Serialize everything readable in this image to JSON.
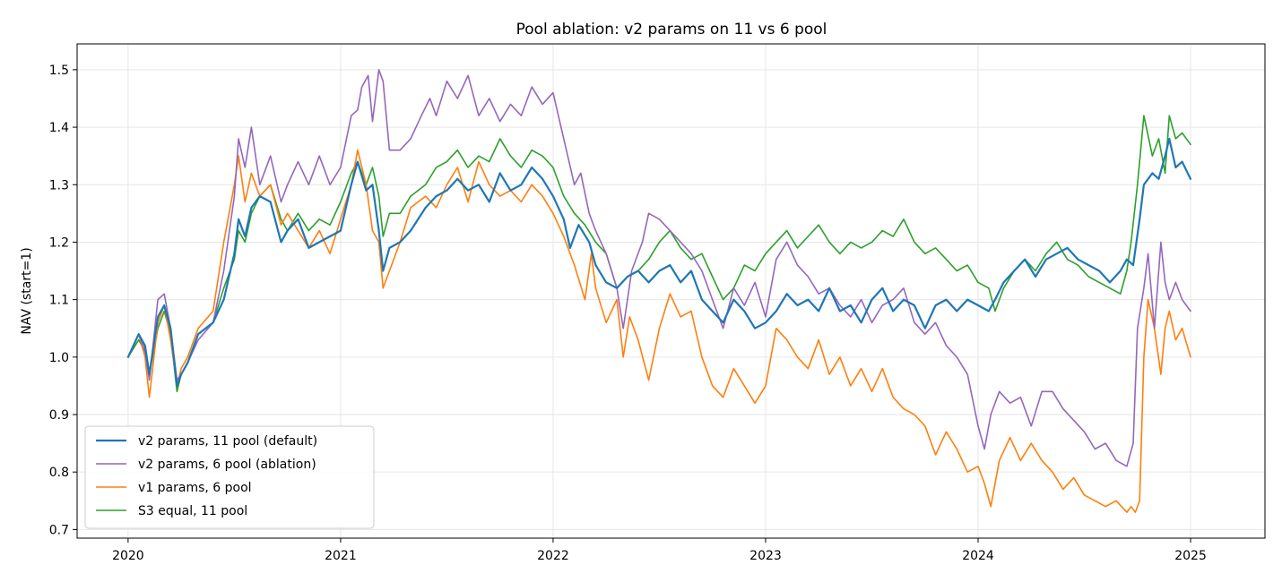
{
  "chart_data": {
    "type": "line",
    "title": "Pool ablation: v2 params on 11 vs 6 pool",
    "xlabel": "",
    "ylabel": "NAV (start=1)",
    "xlim": [
      2019.76,
      2025.35
    ],
    "ylim": [
      0.685,
      1.545
    ],
    "xticks": [
      2020,
      2021,
      2022,
      2023,
      2024,
      2025
    ],
    "xtick_labels": [
      "2020",
      "2021",
      "2022",
      "2023",
      "2024",
      "2025"
    ],
    "yticks": [
      0.7,
      0.8,
      0.9,
      1.0,
      1.1,
      1.2,
      1.3,
      1.4,
      1.5
    ],
    "ytick_labels": [
      "0.7",
      "0.8",
      "0.9",
      "1.0",
      "1.1",
      "1.2",
      "1.3",
      "1.4",
      "1.5"
    ],
    "grid": true,
    "legend_position": "lower-left",
    "series": [
      {
        "name": "v2 params, 11 pool (default)",
        "color": "#1f77b4",
        "line_width": 2.2,
        "x": [
          2020.0,
          2020.05,
          2020.08,
          2020.1,
          2020.14,
          2020.17,
          2020.2,
          2020.23,
          2020.25,
          2020.28,
          2020.33,
          2020.4,
          2020.45,
          2020.5,
          2020.52,
          2020.55,
          2020.58,
          2020.62,
          2020.67,
          2020.72,
          2020.75,
          2020.8,
          2020.85,
          2020.9,
          2020.95,
          2021.0,
          2021.05,
          2021.08,
          2021.12,
          2021.15,
          2021.18,
          2021.2,
          2021.23,
          2021.28,
          2021.33,
          2021.4,
          2021.45,
          2021.5,
          2021.55,
          2021.6,
          2021.65,
          2021.7,
          2021.75,
          2021.8,
          2021.85,
          2021.9,
          2021.95,
          2022.0,
          2022.05,
          2022.08,
          2022.12,
          2022.17,
          2022.2,
          2022.25,
          2022.3,
          2022.35,
          2022.4,
          2022.45,
          2022.5,
          2022.55,
          2022.6,
          2022.65,
          2022.7,
          2022.75,
          2022.8,
          2022.85,
          2022.9,
          2022.95,
          2023.0,
          2023.05,
          2023.1,
          2023.15,
          2023.2,
          2023.25,
          2023.3,
          2023.35,
          2023.4,
          2023.45,
          2023.5,
          2023.55,
          2023.6,
          2023.65,
          2023.7,
          2023.75,
          2023.8,
          2023.85,
          2023.9,
          2023.95,
          2024.0,
          2024.05,
          2024.08,
          2024.12,
          2024.17,
          2024.22,
          2024.27,
          2024.32,
          2024.37,
          2024.42,
          2024.47,
          2024.52,
          2024.57,
          2024.62,
          2024.67,
          2024.7,
          2024.73,
          2024.76,
          2024.78,
          2024.82,
          2024.85,
          2024.88,
          2024.9,
          2024.93,
          2024.96,
          2025.0
        ],
        "y": [
          1.0,
          1.04,
          1.02,
          0.97,
          1.07,
          1.09,
          1.05,
          0.95,
          0.97,
          0.99,
          1.04,
          1.06,
          1.1,
          1.18,
          1.24,
          1.21,
          1.26,
          1.28,
          1.27,
          1.2,
          1.22,
          1.24,
          1.19,
          1.2,
          1.21,
          1.22,
          1.3,
          1.34,
          1.29,
          1.3,
          1.22,
          1.15,
          1.19,
          1.2,
          1.22,
          1.26,
          1.28,
          1.29,
          1.31,
          1.29,
          1.3,
          1.27,
          1.32,
          1.29,
          1.3,
          1.33,
          1.31,
          1.28,
          1.24,
          1.19,
          1.23,
          1.2,
          1.16,
          1.13,
          1.12,
          1.14,
          1.15,
          1.13,
          1.15,
          1.16,
          1.13,
          1.15,
          1.1,
          1.08,
          1.06,
          1.1,
          1.08,
          1.05,
          1.06,
          1.08,
          1.11,
          1.09,
          1.1,
          1.08,
          1.12,
          1.08,
          1.09,
          1.06,
          1.1,
          1.12,
          1.08,
          1.1,
          1.09,
          1.05,
          1.09,
          1.1,
          1.08,
          1.1,
          1.09,
          1.08,
          1.1,
          1.13,
          1.15,
          1.17,
          1.14,
          1.17,
          1.18,
          1.19,
          1.17,
          1.16,
          1.15,
          1.13,
          1.15,
          1.17,
          1.16,
          1.24,
          1.3,
          1.32,
          1.31,
          1.35,
          1.38,
          1.33,
          1.34,
          1.31
        ]
      },
      {
        "name": "v2 params, 6 pool (ablation)",
        "color": "#9467bd",
        "line_width": 1.6,
        "x": [
          2020.0,
          2020.05,
          2020.08,
          2020.1,
          2020.14,
          2020.17,
          2020.2,
          2020.23,
          2020.25,
          2020.28,
          2020.33,
          2020.4,
          2020.45,
          2020.5,
          2020.52,
          2020.55,
          2020.58,
          2020.62,
          2020.67,
          2020.72,
          2020.75,
          2020.8,
          2020.85,
          2020.9,
          2020.95,
          2021.0,
          2021.05,
          2021.08,
          2021.1,
          2021.13,
          2021.15,
          2021.18,
          2021.2,
          2021.23,
          2021.28,
          2021.33,
          2021.38,
          2021.42,
          2021.45,
          2021.5,
          2021.55,
          2021.6,
          2021.65,
          2021.7,
          2021.75,
          2021.8,
          2021.85,
          2021.9,
          2021.95,
          2022.0,
          2022.05,
          2022.1,
          2022.13,
          2022.17,
          2022.2,
          2022.25,
          2022.3,
          2022.33,
          2022.37,
          2022.42,
          2022.45,
          2022.5,
          2022.55,
          2022.6,
          2022.65,
          2022.7,
          2022.75,
          2022.8,
          2022.85,
          2022.9,
          2022.95,
          2023.0,
          2023.05,
          2023.1,
          2023.15,
          2023.2,
          2023.25,
          2023.3,
          2023.35,
          2023.4,
          2023.45,
          2023.5,
          2023.55,
          2023.6,
          2023.65,
          2023.7,
          2023.75,
          2023.8,
          2023.85,
          2023.9,
          2023.95,
          2024.0,
          2024.03,
          2024.06,
          2024.1,
          2024.15,
          2024.2,
          2024.25,
          2024.3,
          2024.35,
          2024.4,
          2024.45,
          2024.5,
          2024.55,
          2024.6,
          2024.65,
          2024.7,
          2024.73,
          2024.75,
          2024.78,
          2024.8,
          2024.83,
          2024.86,
          2024.88,
          2024.9,
          2024.93,
          2024.96,
          2025.0
        ],
        "y": [
          1.0,
          1.04,
          1.01,
          0.96,
          1.1,
          1.11,
          1.05,
          0.96,
          0.97,
          0.99,
          1.03,
          1.06,
          1.15,
          1.28,
          1.38,
          1.33,
          1.4,
          1.3,
          1.35,
          1.27,
          1.3,
          1.34,
          1.3,
          1.35,
          1.3,
          1.33,
          1.42,
          1.43,
          1.47,
          1.49,
          1.41,
          1.5,
          1.48,
          1.36,
          1.36,
          1.38,
          1.42,
          1.45,
          1.42,
          1.48,
          1.45,
          1.49,
          1.42,
          1.45,
          1.41,
          1.44,
          1.42,
          1.47,
          1.44,
          1.46,
          1.38,
          1.3,
          1.32,
          1.25,
          1.22,
          1.18,
          1.12,
          1.05,
          1.15,
          1.2,
          1.25,
          1.24,
          1.22,
          1.2,
          1.18,
          1.15,
          1.1,
          1.05,
          1.12,
          1.09,
          1.13,
          1.07,
          1.17,
          1.2,
          1.16,
          1.14,
          1.11,
          1.12,
          1.09,
          1.07,
          1.1,
          1.06,
          1.09,
          1.1,
          1.12,
          1.06,
          1.04,
          1.06,
          1.02,
          1.0,
          0.97,
          0.88,
          0.84,
          0.9,
          0.94,
          0.92,
          0.93,
          0.88,
          0.94,
          0.94,
          0.91,
          0.89,
          0.87,
          0.84,
          0.85,
          0.82,
          0.81,
          0.85,
          1.05,
          1.12,
          1.18,
          1.05,
          1.2,
          1.13,
          1.1,
          1.13,
          1.1,
          1.08
        ]
      },
      {
        "name": "v1 params, 6 pool",
        "color": "#ff7f0e",
        "line_width": 1.6,
        "x": [
          2020.0,
          2020.05,
          2020.08,
          2020.1,
          2020.14,
          2020.17,
          2020.2,
          2020.23,
          2020.25,
          2020.28,
          2020.33,
          2020.4,
          2020.45,
          2020.5,
          2020.52,
          2020.55,
          2020.58,
          2020.62,
          2020.67,
          2020.72,
          2020.75,
          2020.8,
          2020.85,
          2020.9,
          2020.95,
          2021.0,
          2021.05,
          2021.08,
          2021.12,
          2021.15,
          2021.18,
          2021.2,
          2021.23,
          2021.28,
          2021.33,
          2021.4,
          2021.45,
          2021.5,
          2021.55,
          2021.6,
          2021.65,
          2021.7,
          2021.75,
          2021.8,
          2021.85,
          2021.9,
          2021.95,
          2022.0,
          2022.05,
          2022.1,
          2022.15,
          2022.18,
          2022.2,
          2022.25,
          2022.3,
          2022.33,
          2022.36,
          2022.4,
          2022.45,
          2022.5,
          2022.55,
          2022.6,
          2022.65,
          2022.7,
          2022.75,
          2022.8,
          2022.85,
          2022.9,
          2022.95,
          2023.0,
          2023.05,
          2023.1,
          2023.15,
          2023.2,
          2023.25,
          2023.3,
          2023.35,
          2023.4,
          2023.45,
          2023.5,
          2023.55,
          2023.6,
          2023.65,
          2023.7,
          2023.75,
          2023.8,
          2023.85,
          2023.9,
          2023.95,
          2024.0,
          2024.03,
          2024.06,
          2024.1,
          2024.15,
          2024.2,
          2024.25,
          2024.3,
          2024.35,
          2024.4,
          2024.45,
          2024.5,
          2024.55,
          2024.6,
          2024.65,
          2024.7,
          2024.72,
          2024.74,
          2024.76,
          2024.78,
          2024.8,
          2024.83,
          2024.86,
          2024.88,
          2024.9,
          2024.93,
          2024.96,
          2025.0
        ],
        "y": [
          1.0,
          1.04,
          1.0,
          0.93,
          1.06,
          1.09,
          1.03,
          0.95,
          0.98,
          1.0,
          1.05,
          1.08,
          1.2,
          1.3,
          1.35,
          1.27,
          1.32,
          1.28,
          1.3,
          1.23,
          1.25,
          1.22,
          1.19,
          1.22,
          1.18,
          1.24,
          1.3,
          1.36,
          1.3,
          1.22,
          1.2,
          1.12,
          1.15,
          1.2,
          1.26,
          1.28,
          1.26,
          1.3,
          1.33,
          1.27,
          1.34,
          1.3,
          1.28,
          1.29,
          1.27,
          1.3,
          1.28,
          1.25,
          1.21,
          1.16,
          1.1,
          1.18,
          1.12,
          1.06,
          1.1,
          1.0,
          1.07,
          1.03,
          0.96,
          1.05,
          1.11,
          1.07,
          1.08,
          1.0,
          0.95,
          0.93,
          0.98,
          0.95,
          0.92,
          0.95,
          1.05,
          1.03,
          1.0,
          0.98,
          1.03,
          0.97,
          1.0,
          0.95,
          0.98,
          0.94,
          0.98,
          0.93,
          0.91,
          0.9,
          0.88,
          0.83,
          0.87,
          0.84,
          0.8,
          0.81,
          0.78,
          0.74,
          0.82,
          0.86,
          0.82,
          0.85,
          0.82,
          0.8,
          0.77,
          0.79,
          0.76,
          0.75,
          0.74,
          0.75,
          0.73,
          0.74,
          0.73,
          0.75,
          1.0,
          1.1,
          1.05,
          0.97,
          1.05,
          1.08,
          1.03,
          1.05,
          1.0
        ]
      },
      {
        "name": "S3 equal, 11 pool",
        "color": "#2ca02c",
        "line_width": 1.6,
        "x": [
          2020.0,
          2020.05,
          2020.08,
          2020.1,
          2020.14,
          2020.17,
          2020.2,
          2020.23,
          2020.25,
          2020.28,
          2020.33,
          2020.4,
          2020.45,
          2020.5,
          2020.52,
          2020.55,
          2020.58,
          2020.62,
          2020.67,
          2020.72,
          2020.75,
          2020.8,
          2020.85,
          2020.9,
          2020.95,
          2021.0,
          2021.05,
          2021.08,
          2021.12,
          2021.15,
          2021.18,
          2021.2,
          2021.23,
          2021.28,
          2021.33,
          2021.4,
          2021.45,
          2021.5,
          2021.55,
          2021.6,
          2021.65,
          2021.7,
          2021.75,
          2021.8,
          2021.85,
          2021.9,
          2021.95,
          2022.0,
          2022.05,
          2022.1,
          2022.15,
          2022.2,
          2022.25,
          2022.3,
          2022.35,
          2022.4,
          2022.45,
          2022.5,
          2022.55,
          2022.6,
          2022.65,
          2022.7,
          2022.75,
          2022.8,
          2022.85,
          2022.9,
          2022.95,
          2023.0,
          2023.05,
          2023.1,
          2023.15,
          2023.2,
          2023.25,
          2023.3,
          2023.35,
          2023.4,
          2023.45,
          2023.5,
          2023.55,
          2023.6,
          2023.65,
          2023.7,
          2023.75,
          2023.8,
          2023.85,
          2023.9,
          2023.95,
          2024.0,
          2024.05,
          2024.08,
          2024.12,
          2024.17,
          2024.22,
          2024.27,
          2024.32,
          2024.37,
          2024.42,
          2024.47,
          2024.52,
          2024.57,
          2024.62,
          2024.67,
          2024.7,
          2024.72,
          2024.75,
          2024.78,
          2024.82,
          2024.85,
          2024.88,
          2024.9,
          2024.93,
          2024.96,
          2025.0
        ],
        "y": [
          1.0,
          1.03,
          1.01,
          0.97,
          1.05,
          1.08,
          1.04,
          0.94,
          0.97,
          0.99,
          1.04,
          1.06,
          1.12,
          1.17,
          1.22,
          1.2,
          1.25,
          1.28,
          1.3,
          1.24,
          1.22,
          1.25,
          1.22,
          1.24,
          1.23,
          1.27,
          1.32,
          1.34,
          1.3,
          1.33,
          1.28,
          1.21,
          1.25,
          1.25,
          1.28,
          1.3,
          1.33,
          1.34,
          1.36,
          1.33,
          1.35,
          1.34,
          1.38,
          1.35,
          1.33,
          1.36,
          1.35,
          1.33,
          1.28,
          1.25,
          1.23,
          1.2,
          1.18,
          1.12,
          1.14,
          1.15,
          1.17,
          1.2,
          1.22,
          1.19,
          1.17,
          1.18,
          1.14,
          1.1,
          1.12,
          1.16,
          1.15,
          1.18,
          1.2,
          1.22,
          1.19,
          1.21,
          1.23,
          1.2,
          1.18,
          1.2,
          1.19,
          1.2,
          1.22,
          1.21,
          1.24,
          1.2,
          1.18,
          1.19,
          1.17,
          1.15,
          1.16,
          1.13,
          1.12,
          1.08,
          1.12,
          1.15,
          1.17,
          1.15,
          1.18,
          1.2,
          1.17,
          1.16,
          1.14,
          1.13,
          1.12,
          1.11,
          1.15,
          1.2,
          1.3,
          1.42,
          1.35,
          1.38,
          1.32,
          1.42,
          1.38,
          1.39,
          1.37
        ]
      }
    ]
  }
}
